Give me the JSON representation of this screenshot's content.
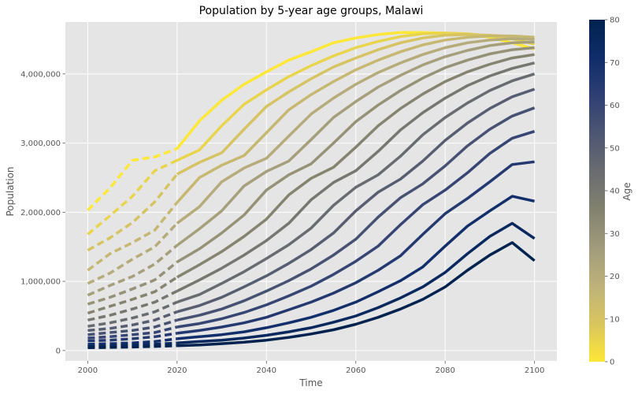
{
  "chart_data": {
    "type": "line",
    "title": "Population by 5-year age groups, Malawi",
    "xlabel": "Time",
    "ylabel": "Population",
    "xlim": [
      1995,
      2105
    ],
    "ylim": [
      -150000,
      4750000
    ],
    "xticks": [
      2000,
      2020,
      2040,
      2060,
      2080,
      2100
    ],
    "xtick_labels": [
      "2000",
      "2020",
      "2040",
      "2060",
      "2080",
      "2100"
    ],
    "yticks": [
      0,
      1000000,
      2000000,
      3000000,
      4000000
    ],
    "ytick_labels": [
      "0",
      "1,000,000",
      "2,000,000",
      "3,000,000",
      "4,000,000"
    ],
    "grid": true,
    "projection_start": 2020,
    "line_styles": {
      "before_2020": "dashed",
      "from_2020": "solid"
    },
    "colorbar": {
      "label": "Age",
      "min": 0,
      "max": 80,
      "ticks": [
        0,
        10,
        20,
        30,
        40,
        50,
        60,
        70,
        80
      ],
      "tick_labels": [
        "0",
        "10",
        "20",
        "30",
        "40",
        "50",
        "60",
        "70",
        "80"
      ],
      "colormap": "cividis_r"
    },
    "colormap_stops": [
      "#fde737",
      "#d9c55e",
      "#bdb27a",
      "#a19b7c",
      "#82826f",
      "#6a6c70",
      "#4d5672",
      "#2e3f73",
      "#0f2d6a",
      "#00224e"
    ],
    "x": [
      2000,
      2005,
      2010,
      2015,
      2020,
      2025,
      2030,
      2035,
      2040,
      2045,
      2050,
      2055,
      2060,
      2065,
      2070,
      2075,
      2080,
      2085,
      2090,
      2095,
      2100
    ],
    "series": [
      {
        "age": 0,
        "values": [
          2030000,
          2350000,
          2750000,
          2800000,
          2920000,
          3320000,
          3620000,
          3850000,
          4030000,
          4200000,
          4320000,
          4450000,
          4520000,
          4570000,
          4600000,
          4600000,
          4590000,
          4570000,
          4530000,
          4450000,
          4360000
        ]
      },
      {
        "age": 5,
        "values": [
          1680000,
          1950000,
          2230000,
          2600000,
          2750000,
          2900000,
          3250000,
          3560000,
          3770000,
          3960000,
          4120000,
          4260000,
          4380000,
          4470000,
          4540000,
          4580000,
          4590000,
          4580000,
          4550000,
          4510000,
          4430000
        ]
      },
      {
        "age": 10,
        "values": [
          1450000,
          1630000,
          1850000,
          2150000,
          2550000,
          2720000,
          2860000,
          3200000,
          3530000,
          3740000,
          3930000,
          4100000,
          4230000,
          4350000,
          4450000,
          4520000,
          4560000,
          4570000,
          4560000,
          4540000,
          4500000
        ]
      },
      {
        "age": 15,
        "values": [
          1160000,
          1400000,
          1560000,
          1740000,
          2140000,
          2500000,
          2680000,
          2820000,
          3150000,
          3480000,
          3700000,
          3890000,
          4060000,
          4200000,
          4320000,
          4420000,
          4490000,
          4530000,
          4550000,
          4550000,
          4530000
        ]
      },
      {
        "age": 20,
        "values": [
          970000,
          1120000,
          1320000,
          1500000,
          1840000,
          2080000,
          2440000,
          2640000,
          2780000,
          3100000,
          3420000,
          3650000,
          3850000,
          4020000,
          4160000,
          4280000,
          4380000,
          4450000,
          4490000,
          4510000,
          4500000
        ]
      },
      {
        "age": 25,
        "values": [
          800000,
          940000,
          1070000,
          1250000,
          1520000,
          1760000,
          2020000,
          2380000,
          2590000,
          2740000,
          3050000,
          3370000,
          3600000,
          3810000,
          3980000,
          4130000,
          4250000,
          4340000,
          4410000,
          4450000,
          4460000
        ]
      },
      {
        "age": 30,
        "values": [
          670000,
          770000,
          890000,
          1020000,
          1280000,
          1470000,
          1700000,
          1960000,
          2320000,
          2540000,
          2700000,
          3000000,
          3310000,
          3550000,
          3760000,
          3940000,
          4090000,
          4200000,
          4290000,
          4350000,
          4380000
        ]
      },
      {
        "age": 35,
        "values": [
          540000,
          640000,
          740000,
          850000,
          1060000,
          1240000,
          1430000,
          1650000,
          1900000,
          2250000,
          2490000,
          2650000,
          2940000,
          3250000,
          3500000,
          3710000,
          3890000,
          4030000,
          4140000,
          4230000,
          4280000
        ]
      },
      {
        "age": 40,
        "values": [
          440000,
          510000,
          600000,
          700000,
          860000,
          1020000,
          1190000,
          1380000,
          1590000,
          1840000,
          2180000,
          2430000,
          2600000,
          2880000,
          3190000,
          3440000,
          3650000,
          3830000,
          3970000,
          4080000,
          4160000
        ]
      },
      {
        "age": 45,
        "values": [
          350000,
          400000,
          470000,
          560000,
          700000,
          810000,
          970000,
          1140000,
          1330000,
          1530000,
          1770000,
          2100000,
          2360000,
          2540000,
          2810000,
          3120000,
          3370000,
          3580000,
          3760000,
          3900000,
          4000000
        ]
      },
      {
        "age": 50,
        "values": [
          290000,
          320000,
          370000,
          440000,
          560000,
          650000,
          770000,
          920000,
          1080000,
          1260000,
          1460000,
          1700000,
          2020000,
          2290000,
          2480000,
          2740000,
          3040000,
          3290000,
          3500000,
          3670000,
          3780000
        ]
      },
      {
        "age": 55,
        "values": [
          230000,
          260000,
          290000,
          340000,
          440000,
          510000,
          600000,
          720000,
          860000,
          1010000,
          1180000,
          1380000,
          1610000,
          1930000,
          2210000,
          2410000,
          2670000,
          2960000,
          3200000,
          3390000,
          3510000
        ]
      },
      {
        "age": 60,
        "values": [
          180000,
          200000,
          230000,
          260000,
          340000,
          390000,
          460000,
          550000,
          660000,
          790000,
          930000,
          1100000,
          1290000,
          1510000,
          1820000,
          2110000,
          2320000,
          2570000,
          2850000,
          3070000,
          3170000
        ]
      },
      {
        "age": 65,
        "values": [
          140000,
          150000,
          170000,
          200000,
          250000,
          290000,
          340000,
          400000,
          480000,
          590000,
          700000,
          830000,
          980000,
          1160000,
          1370000,
          1680000,
          1980000,
          2200000,
          2440000,
          2690000,
          2730000
        ]
      },
      {
        "age": 70,
        "values": [
          90000,
          100000,
          110000,
          130000,
          170000,
          200000,
          230000,
          270000,
          330000,
          400000,
          480000,
          580000,
          700000,
          850000,
          1010000,
          1210000,
          1510000,
          1800000,
          2020000,
          2230000,
          2160000
        ]
      },
      {
        "age": 75,
        "values": [
          60000,
          70000,
          80000,
          90000,
          110000,
          130000,
          150000,
          180000,
          220000,
          270000,
          330000,
          410000,
          500000,
          620000,
          760000,
          920000,
          1130000,
          1400000,
          1650000,
          1840000,
          1620000
        ]
      },
      {
        "age": 80,
        "values": [
          40000,
          45000,
          50000,
          60000,
          70000,
          80000,
          100000,
          120000,
          150000,
          190000,
          240000,
          300000,
          380000,
          480000,
          600000,
          740000,
          920000,
          1160000,
          1380000,
          1560000,
          1300000
        ]
      }
    ]
  }
}
